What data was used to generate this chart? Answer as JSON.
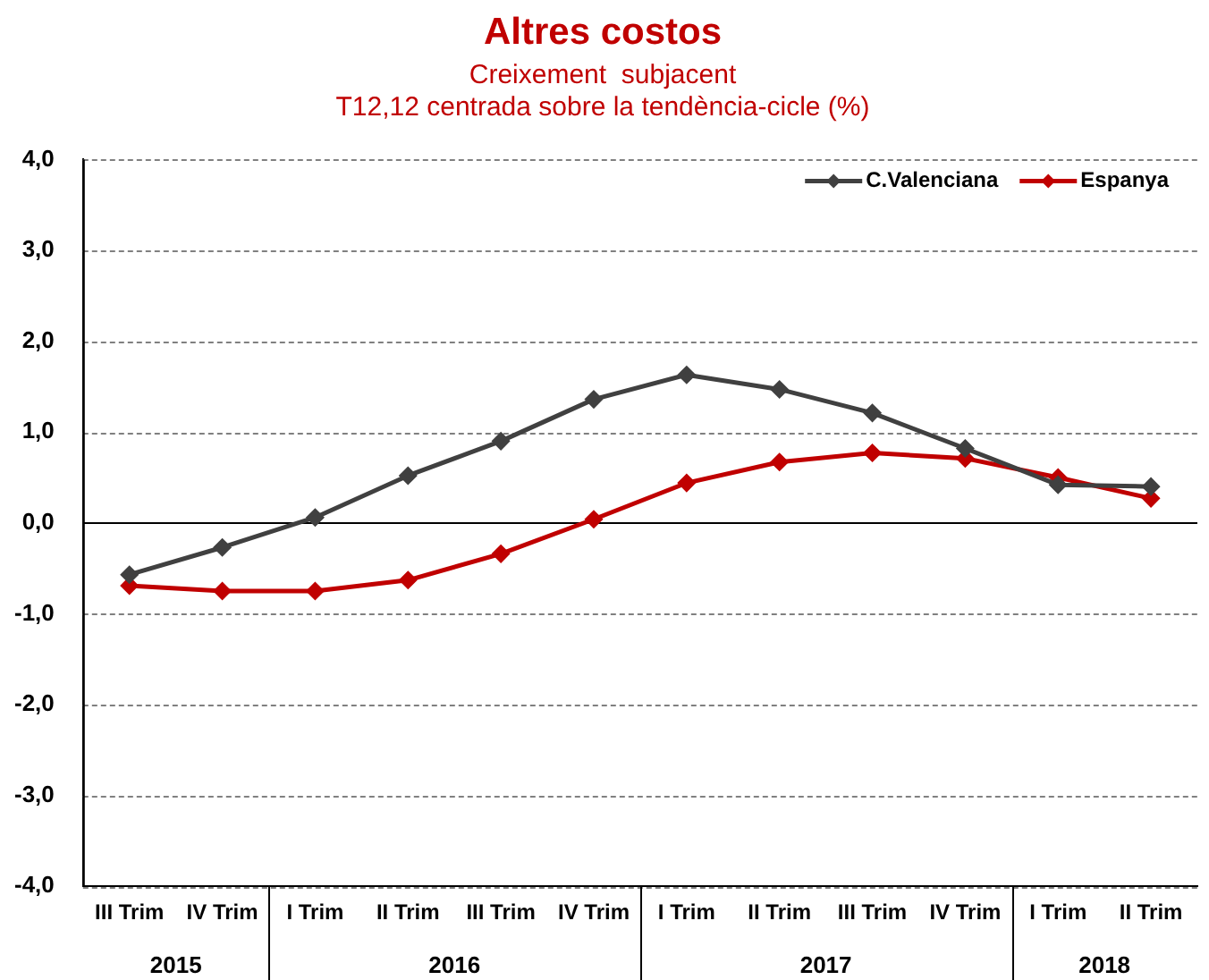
{
  "chart_data": {
    "type": "line",
    "title": "Altres costos",
    "subtitle": "Creixement  subjacent\nT12,12 centrada sobre la tendència-cicle (%)",
    "categories": [
      "III Trim",
      "IV Trim",
      "I Trim",
      "II Trim",
      "III Trim",
      "IV Trim",
      "I Trim",
      "II Trim",
      "III Trim",
      "IV Trim",
      "I Trim",
      "II Trim"
    ],
    "series": [
      {
        "name": "C.Valenciana",
        "color": "#404040",
        "values": [
          -0.57,
          -0.27,
          0.06,
          0.52,
          0.9,
          1.36,
          1.63,
          1.47,
          1.21,
          0.82,
          0.42,
          0.4
        ]
      },
      {
        "name": "Espanya",
        "color": "#c00000",
        "values": [
          -0.69,
          -0.75,
          -0.75,
          -0.63,
          -0.34,
          0.04,
          0.44,
          0.67,
          0.77,
          0.71,
          0.5,
          0.27
        ]
      }
    ],
    "ylim": [
      -4,
      4
    ],
    "yticks": [
      {
        "value": -4,
        "label": "-4,0"
      },
      {
        "value": -3,
        "label": "-3,0"
      },
      {
        "value": -2,
        "label": "-2,0"
      },
      {
        "value": -1,
        "label": "-1,0"
      },
      {
        "value": 0,
        "label": "0,0"
      },
      {
        "value": 1,
        "label": "1,0"
      },
      {
        "value": 2,
        "label": "2,0"
      },
      {
        "value": 3,
        "label": "3,0"
      },
      {
        "value": 4,
        "label": "4,0"
      }
    ],
    "annotations": [
      "2015",
      "2016",
      "2017",
      "2018"
    ],
    "grid": "y",
    "legend": "top right",
    "marker": "diamond",
    "line_style": "solid"
  }
}
